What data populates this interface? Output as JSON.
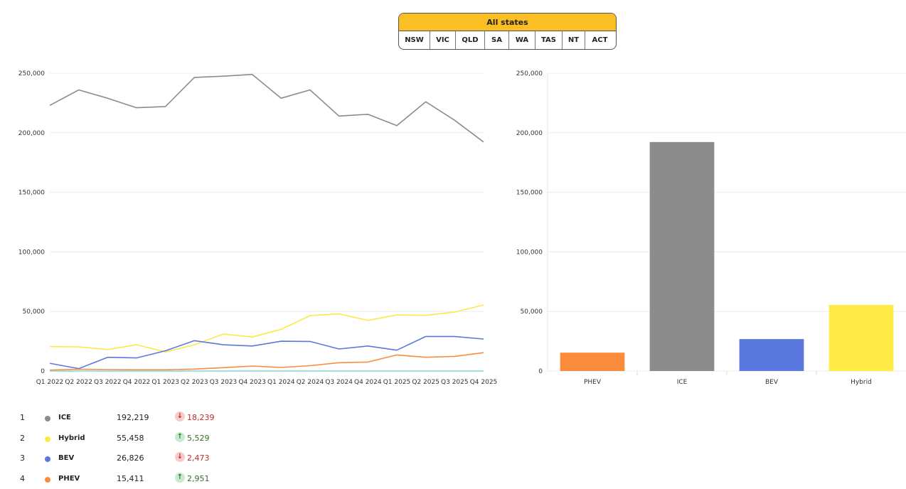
{
  "state_selector": {
    "all_label": "All states",
    "states": [
      "NSW",
      "VIC",
      "QLD",
      "SA",
      "WA",
      "TAS",
      "NT",
      "ACT"
    ]
  },
  "chart_data": [
    {
      "type": "line",
      "x": [
        "Q1 2022",
        "Q2 2022",
        "Q3 2022",
        "Q4 2022",
        "Q1 2023",
        "Q2 2023",
        "Q3 2023",
        "Q4 2023",
        "Q1 2024",
        "Q2 2024",
        "Q3 2024",
        "Q4 2024",
        "Q1 2025",
        "Q2 2025",
        "Q3 2025",
        "Q4 2025"
      ],
      "ylim": [
        0,
        250000
      ],
      "yticks": [
        0,
        50000,
        100000,
        150000,
        200000,
        250000
      ],
      "ytick_labels": [
        "0",
        "50,000",
        "100,000",
        "150,000",
        "200,000",
        "250,000"
      ],
      "grid": true,
      "series": [
        {
          "key": "ICE",
          "color": "#8c8c8c",
          "values": [
            223000,
            236000,
            229000,
            221000,
            222000,
            246500,
            247500,
            249000,
            229000,
            236000,
            214000,
            215500,
            206000,
            226000,
            210500,
            192219
          ]
        },
        {
          "key": "Hybrid",
          "color": "#fde847",
          "values": [
            20500,
            20300,
            18000,
            22000,
            16000,
            22000,
            31000,
            28500,
            35000,
            46500,
            48000,
            42500,
            47000,
            46700,
            49500,
            55458
          ]
        },
        {
          "key": "BEV",
          "color": "#5b78df",
          "values": [
            6500,
            2000,
            11500,
            11000,
            17000,
            25500,
            22000,
            21000,
            25000,
            24800,
            18500,
            21000,
            17500,
            29000,
            29000,
            26826
          ]
        },
        {
          "key": "PHEV",
          "color": "#fb8c3b",
          "values": [
            800,
            1500,
            1200,
            1000,
            1000,
            1600,
            2800,
            4200,
            3000,
            4500,
            7000,
            7500,
            13500,
            11500,
            12300,
            15411
          ]
        },
        {
          "key": "other",
          "color": "#7fd6d6",
          "values": [
            0,
            0,
            0,
            0,
            0,
            0,
            0,
            0,
            0,
            0,
            0,
            0,
            0,
            0,
            0,
            0
          ]
        }
      ]
    },
    {
      "type": "bar",
      "categories": [
        "PHEV",
        "ICE",
        "BEV",
        "Hybrid"
      ],
      "values": [
        15411,
        192219,
        26826,
        55458
      ],
      "colors": [
        "#fb8c3b",
        "#8c8c8c",
        "#5b78df",
        "#feeb45"
      ],
      "ylim": [
        0,
        250000
      ],
      "yticks": [
        0,
        50000,
        100000,
        150000,
        200000,
        250000
      ],
      "ytick_labels": [
        "0",
        "50,000",
        "100,000",
        "150,000",
        "200,000",
        "250,000"
      ],
      "grid": true
    }
  ],
  "legend": [
    {
      "rank": "1",
      "name": "ICE",
      "color": "#8c8c8c",
      "value": "192,219",
      "direction": "down",
      "arrow": "↓",
      "delta": "18,239"
    },
    {
      "rank": "2",
      "name": "Hybrid",
      "color": "#fde847",
      "value": "55,458",
      "direction": "up",
      "arrow": "↑",
      "delta": "5,529"
    },
    {
      "rank": "3",
      "name": "BEV",
      "color": "#5b78df",
      "value": "26,826",
      "direction": "down",
      "arrow": "↓",
      "delta": "2,473"
    },
    {
      "rank": "4",
      "name": "PHEV",
      "color": "#fb8c3b",
      "value": "15,411",
      "direction": "up",
      "arrow": "↑",
      "delta": "2,951"
    }
  ]
}
